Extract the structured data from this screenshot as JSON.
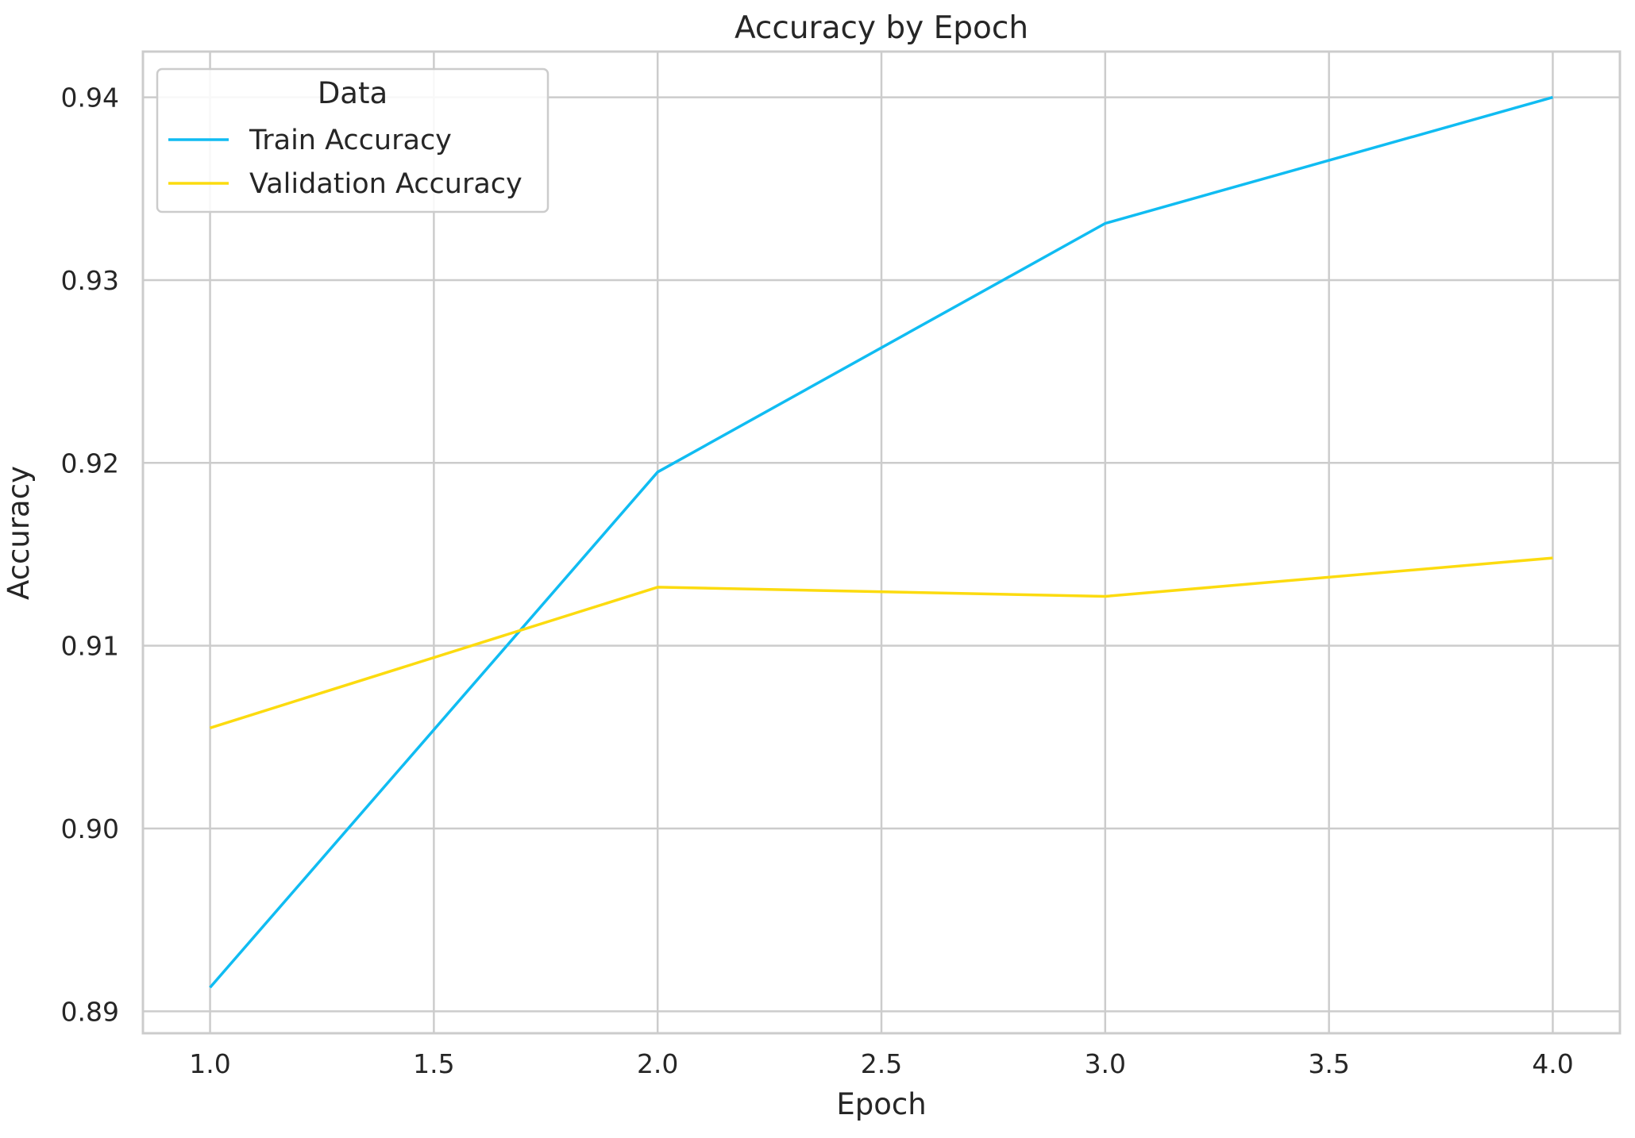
{
  "chart_data": {
    "type": "line",
    "title": "Accuracy by Epoch",
    "xlabel": "Epoch",
    "ylabel": "Accuracy",
    "xlim": [
      0.85,
      4.15
    ],
    "ylim": [
      0.8888,
      0.9425
    ],
    "x_ticks": [
      1.0,
      1.5,
      2.0,
      2.5,
      3.0,
      3.5,
      4.0
    ],
    "x_tick_labels": [
      "1.0",
      "1.5",
      "2.0",
      "2.5",
      "3.0",
      "3.5",
      "4.0"
    ],
    "y_ticks": [
      0.89,
      0.9,
      0.91,
      0.92,
      0.93,
      0.94
    ],
    "y_tick_labels": [
      "0.89",
      "0.90",
      "0.91",
      "0.92",
      "0.93",
      "0.94"
    ],
    "grid": true,
    "legend": {
      "title": "Data",
      "placement": "upper-left"
    },
    "series": [
      {
        "name": "Train Accuracy",
        "color": "#10bcf2",
        "x": [
          1,
          2,
          3,
          4
        ],
        "y": [
          0.8913,
          0.9195,
          0.9331,
          0.94
        ]
      },
      {
        "name": "Validation Accuracy",
        "color": "#fcdb0f",
        "x": [
          1,
          2,
          3,
          4
        ],
        "y": [
          0.9055,
          0.9132,
          0.9127,
          0.9148
        ]
      }
    ]
  }
}
